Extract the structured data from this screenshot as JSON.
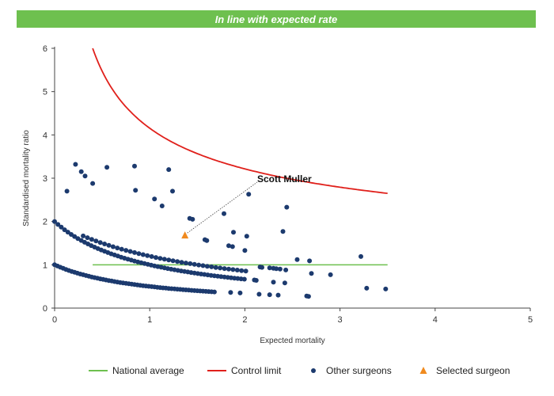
{
  "banner": {
    "text": "In line with expected rate",
    "color": "#6ec04f"
  },
  "chart_data": {
    "type": "scatter",
    "title": "",
    "xlabel": "Expected mortality",
    "ylabel": "Standardised mortality ratio",
    "xlim": [
      0,
      5
    ],
    "ylim": [
      0,
      6
    ],
    "x_ticks": [
      "0",
      "1",
      "2",
      "3",
      "4",
      "5"
    ],
    "y_ticks": [
      "0",
      "1",
      "2",
      "3",
      "4",
      "5",
      "6"
    ],
    "grid": false,
    "legend_position": "bottom",
    "national_average": {
      "name": "National average",
      "color": "#6ec04f",
      "y": 1,
      "x_range": [
        0.4,
        3.5
      ]
    },
    "control_limit": {
      "name": "Control limit",
      "color": "#e0201b",
      "x_range": [
        0.4,
        3.5
      ],
      "note": "upper limit curve from (0.4, 6.0) to (3.5, 2.65)"
    },
    "other_surgeons": {
      "name": "Other surgeons",
      "color": "#1c3a6e",
      "curve_bands": [
        {
          "deaths": 1,
          "x_range": [
            0.0,
            1.7
          ],
          "step": 0.03
        },
        {
          "deaths": 2,
          "x_range": [
            0.0,
            2.0
          ],
          "step": 0.035
        },
        {
          "deaths": 3,
          "x_range": [
            0.3,
            2.05
          ],
          "step": 0.045
        }
      ],
      "points": [
        {
          "x": 0.22,
          "y": 3.32
        },
        {
          "x": 0.28,
          "y": 3.15
        },
        {
          "x": 0.32,
          "y": 3.05
        },
        {
          "x": 0.4,
          "y": 2.88
        },
        {
          "x": 0.55,
          "y": 3.25
        },
        {
          "x": 0.84,
          "y": 3.28
        },
        {
          "x": 1.2,
          "y": 3.2
        },
        {
          "x": 0.13,
          "y": 2.7
        },
        {
          "x": 0.85,
          "y": 2.72
        },
        {
          "x": 1.05,
          "y": 2.52
        },
        {
          "x": 1.13,
          "y": 2.36
        },
        {
          "x": 1.24,
          "y": 2.7
        },
        {
          "x": 1.42,
          "y": 2.07
        },
        {
          "x": 1.45,
          "y": 2.05
        },
        {
          "x": 1.58,
          "y": 1.58
        },
        {
          "x": 1.6,
          "y": 1.56
        },
        {
          "x": 1.78,
          "y": 2.18
        },
        {
          "x": 1.88,
          "y": 1.75
        },
        {
          "x": 1.83,
          "y": 1.44
        },
        {
          "x": 1.87,
          "y": 1.42
        },
        {
          "x": 2.02,
          "y": 1.66
        },
        {
          "x": 2.0,
          "y": 1.33
        },
        {
          "x": 2.04,
          "y": 2.63
        },
        {
          "x": 2.1,
          "y": 0.65
        },
        {
          "x": 2.12,
          "y": 0.64
        },
        {
          "x": 2.16,
          "y": 0.95
        },
        {
          "x": 2.18,
          "y": 0.94
        },
        {
          "x": 2.26,
          "y": 0.93
        },
        {
          "x": 2.3,
          "y": 0.92
        },
        {
          "x": 2.33,
          "y": 0.91
        },
        {
          "x": 2.4,
          "y": 1.77
        },
        {
          "x": 2.44,
          "y": 2.33
        },
        {
          "x": 2.3,
          "y": 0.6
        },
        {
          "x": 2.42,
          "y": 0.58
        },
        {
          "x": 2.43,
          "y": 0.88
        },
        {
          "x": 2.37,
          "y": 0.9
        },
        {
          "x": 2.55,
          "y": 1.12
        },
        {
          "x": 2.68,
          "y": 1.09
        },
        {
          "x": 2.7,
          "y": 0.8
        },
        {
          "x": 2.9,
          "y": 0.77
        },
        {
          "x": 2.15,
          "y": 0.32
        },
        {
          "x": 2.26,
          "y": 0.31
        },
        {
          "x": 2.35,
          "y": 0.3
        },
        {
          "x": 2.65,
          "y": 0.28
        },
        {
          "x": 2.67,
          "y": 0.27
        },
        {
          "x": 3.22,
          "y": 1.19
        },
        {
          "x": 3.28,
          "y": 0.46
        },
        {
          "x": 3.48,
          "y": 0.44
        },
        {
          "x": 1.95,
          "y": 0.35
        },
        {
          "x": 1.85,
          "y": 0.36
        }
      ]
    },
    "selected_surgeon": {
      "name": "Selected surgeon",
      "label": "Scott Muller",
      "color": "#f08a1e",
      "x": 1.37,
      "y": 1.68
    },
    "legend": [
      {
        "key": "national_average",
        "label": "National average",
        "marker": "line",
        "color": "#6ec04f"
      },
      {
        "key": "control_limit",
        "label": "Control limit",
        "marker": "line",
        "color": "#e0201b"
      },
      {
        "key": "other_surgeons",
        "label": "Other surgeons",
        "marker": "dot",
        "color": "#1c3a6e"
      },
      {
        "key": "selected_surgeon",
        "label": "Selected surgeon",
        "marker": "triangle",
        "color": "#f08a1e"
      }
    ]
  }
}
